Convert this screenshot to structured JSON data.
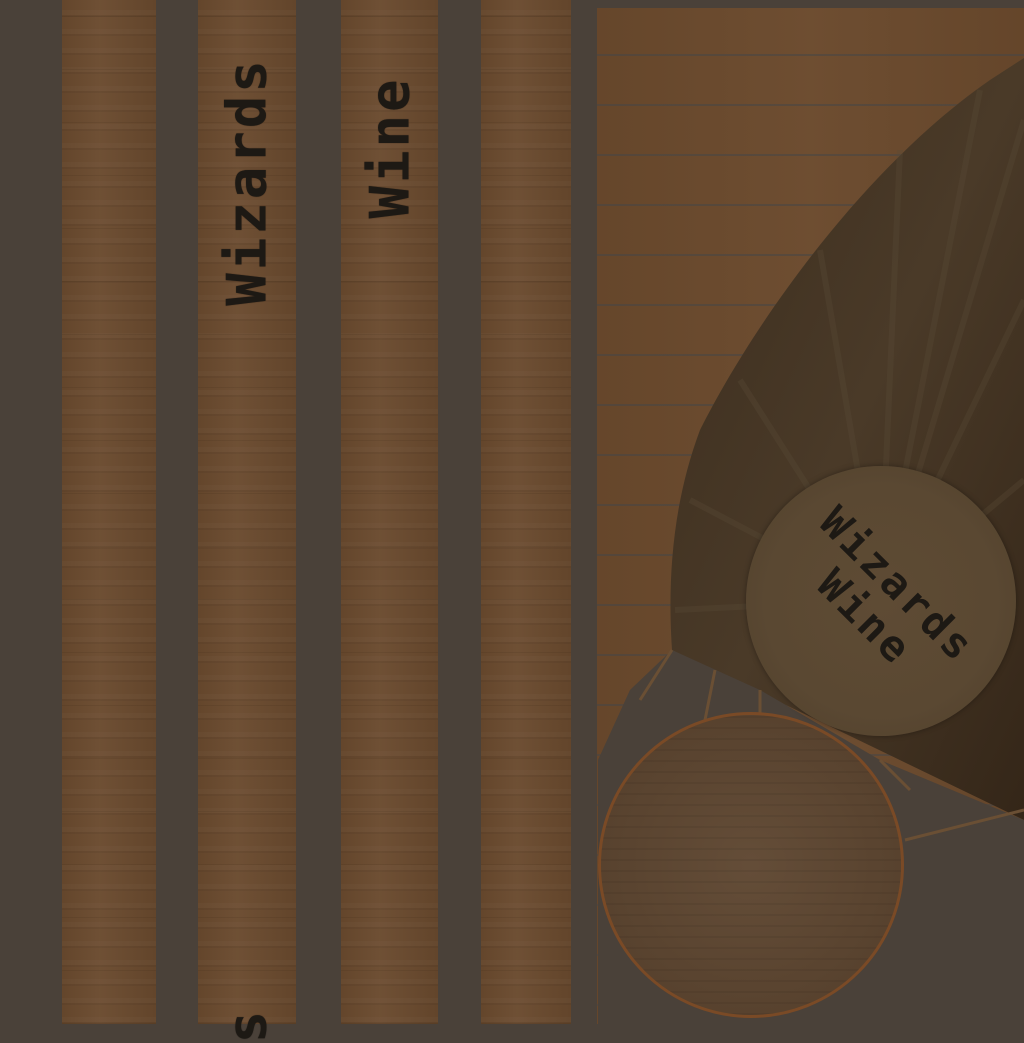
{
  "texture_atlas": {
    "staves": [
      {
        "text": ""
      },
      {
        "text": "Wizards"
      },
      {
        "text": "Wine"
      },
      {
        "text": ""
      }
    ],
    "stave_bottom_fragment": "s",
    "lid_label": {
      "line1": "Wizards",
      "line2": "Wine"
    }
  },
  "colors": {
    "background": "#4a4139",
    "wood": "#6a4a2e",
    "ink": "#1d1914",
    "barrel_rim": "#7a4a26"
  }
}
